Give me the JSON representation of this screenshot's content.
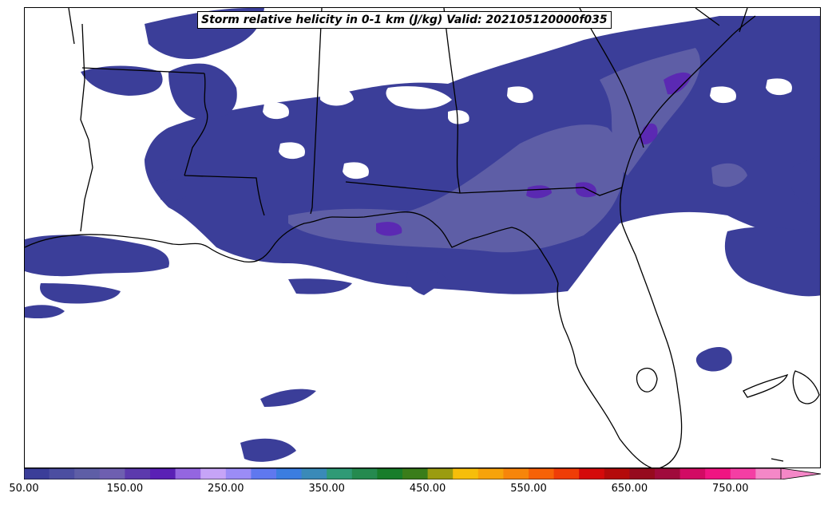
{
  "title": "Storm relative helicity in 0-1 km (J/kg) Valid: 202105120000f035",
  "colorbar": {
    "min": 50,
    "max": 800,
    "extend": "max",
    "tick_labels": [
      "50.00",
      "150.00",
      "250.00",
      "350.00",
      "450.00",
      "550.00",
      "650.00",
      "750.00"
    ],
    "colors": [
      "#3b3e99",
      "#4c4ea1",
      "#5e5ea6",
      "#6e5fb0",
      "#5c3aad",
      "#5a20b5",
      "#9466e0",
      "#c6a4f7",
      "#9b8cf6",
      "#5f78ef",
      "#3b7de0",
      "#3a8ab8",
      "#2f9a76",
      "#258a4f",
      "#187d2a",
      "#3a7d1a",
      "#9b9c10",
      "#f6be0a",
      "#f7a30a",
      "#f7850a",
      "#f76207",
      "#ef3d07",
      "#d50a0a",
      "#b40a0a",
      "#960a1e",
      "#a00a3c",
      "#d20a64",
      "#f01482",
      "#f43ea4",
      "#f487c7"
    ]
  },
  "map": {
    "region": "Southeastern United States and Gulf of Mexico",
    "field_color_low": "#3b3e99",
    "field_color_mid": "#5e5ea6",
    "field_color_high": "#5a20b5",
    "border_color": "#000000"
  }
}
